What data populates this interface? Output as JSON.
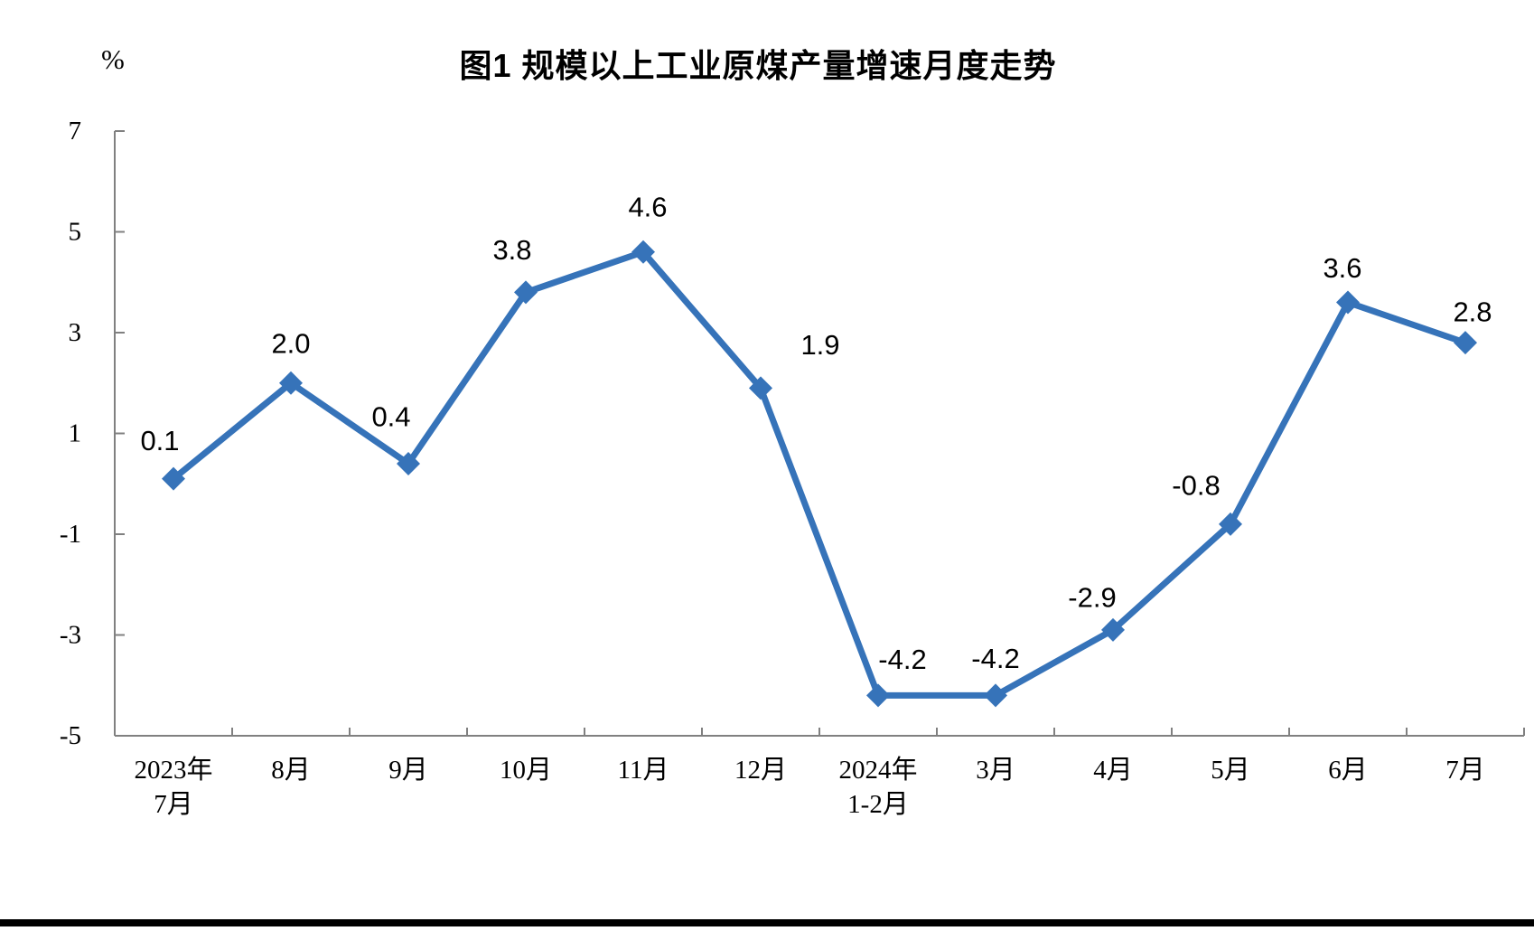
{
  "chart_data": {
    "type": "line",
    "title": "图1 规模以上工业原煤产量增速月度走势",
    "unit_label": "%",
    "categories": [
      "2023年\n7月",
      "8月",
      "9月",
      "10月",
      "11月",
      "12月",
      "2024年\n1-2月",
      "3月",
      "4月",
      "5月",
      "6月",
      "7月"
    ],
    "values": [
      0.1,
      2.0,
      0.4,
      3.8,
      4.6,
      1.9,
      -4.2,
      -4.2,
      -2.9,
      -0.8,
      3.6,
      2.8
    ],
    "data_labels": [
      "0.1",
      "2.0",
      "0.4",
      "3.8",
      "4.6",
      "1.9",
      "-4.2",
      "-4.2",
      "-2.9",
      "-0.8",
      "3.6",
      "2.8"
    ],
    "y_ticks": [
      "7",
      "5",
      "3",
      "1",
      "-1",
      "-3",
      "-5"
    ],
    "ylim": [
      -5,
      7
    ],
    "grid": false,
    "legend": "none",
    "marker": "diamond",
    "line_color": "#3673B9",
    "axis_color": "#808080",
    "text_color": "#000000",
    "background_color": "#ffffff"
  }
}
